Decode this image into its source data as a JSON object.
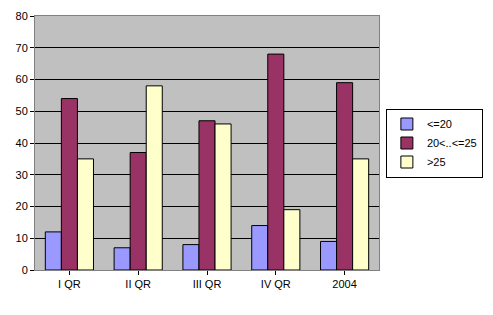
{
  "chart_data": {
    "type": "bar",
    "categories": [
      "I QR",
      "II QR",
      "III QR",
      "IV QR",
      "2004"
    ],
    "series": [
      {
        "name": "<=20",
        "color": "#9999ff",
        "values": [
          12,
          7,
          8,
          14,
          9
        ]
      },
      {
        "name": "20<..<=25",
        "color": "#993366",
        "values": [
          54,
          37,
          47,
          68,
          59
        ]
      },
      {
        "name": ">25",
        "color": "#ffffcc",
        "values": [
          35,
          58,
          46,
          19,
          35
        ]
      }
    ],
    "ylim": [
      0,
      80
    ],
    "yticks": [
      0,
      10,
      20,
      30,
      40,
      50,
      60,
      70,
      80
    ],
    "grid": true,
    "legend": "right"
  }
}
